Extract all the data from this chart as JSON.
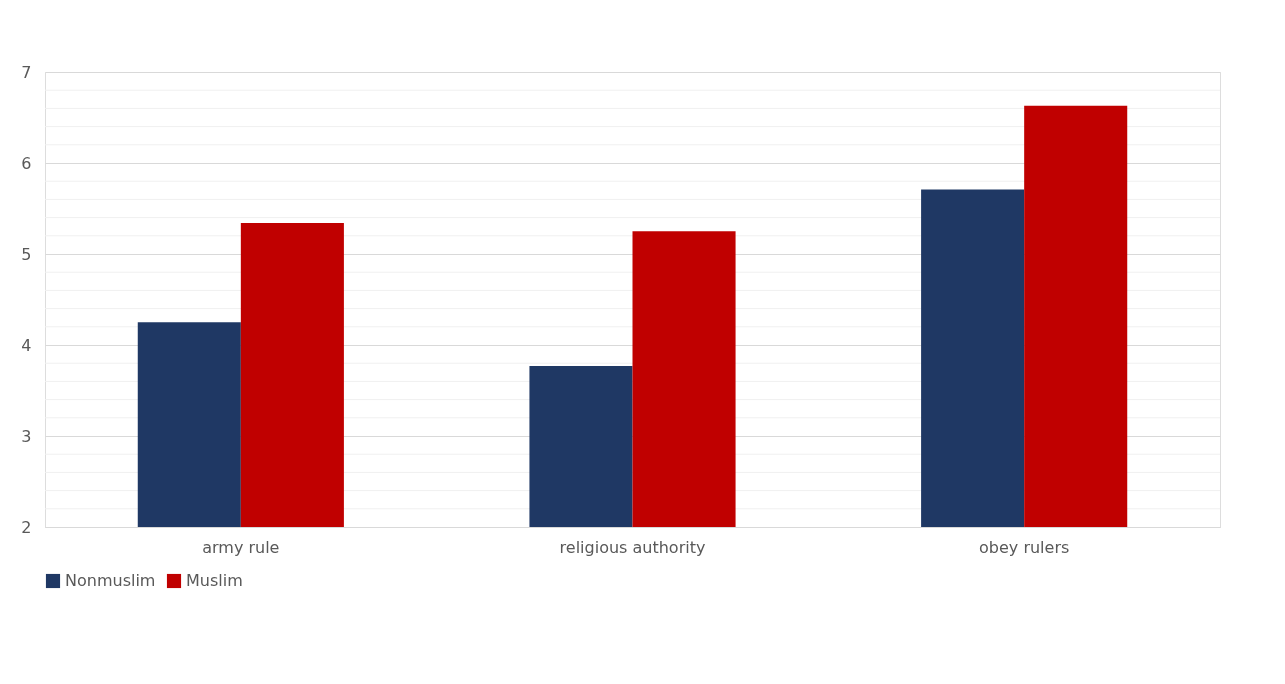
{
  "chart_data": {
    "type": "bar",
    "categories": [
      "army rule",
      "religious authority",
      "obey rulers"
    ],
    "series": [
      {
        "name": "Nonmuslim",
        "color": "#1f3864",
        "values": [
          4.25,
          3.77,
          5.71
        ]
      },
      {
        "name": "Muslim",
        "color": "#c00000",
        "values": [
          5.34,
          5.25,
          6.63
        ]
      }
    ],
    "ylim": [
      2,
      7
    ],
    "yticks": [
      2,
      3,
      4,
      5,
      6,
      7
    ],
    "grid": "y",
    "legend": "bottom"
  }
}
